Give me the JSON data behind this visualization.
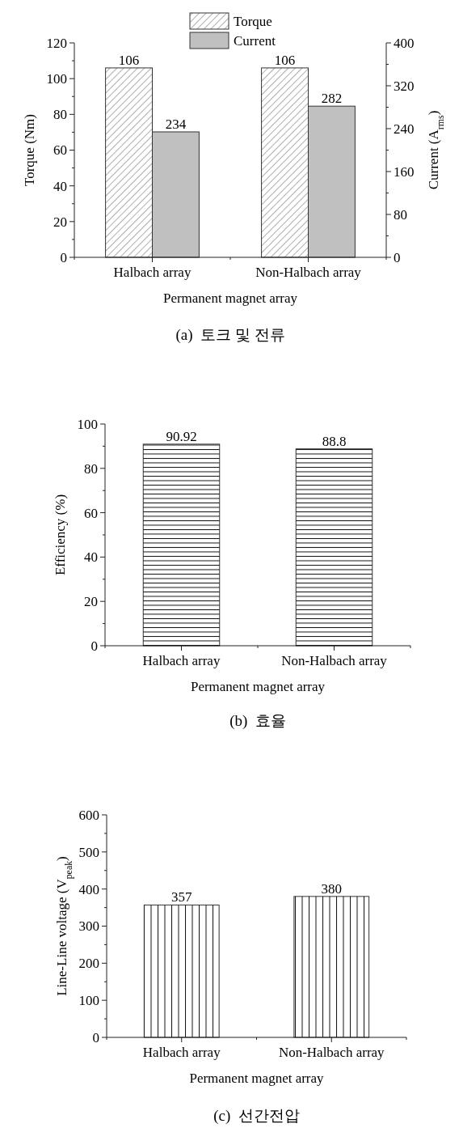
{
  "chart_data": [
    {
      "type": "bar",
      "categories": [
        "Halbach array",
        "Non-Halbach array"
      ],
      "xlabel": "Permanent magnet array",
      "ylabel": "Torque (Nm)",
      "y2label": "Current (A$_{rms}$)",
      "series": [
        {
          "name": "Torque",
          "color": "#ffffff",
          "values": [
            106,
            106
          ]
        },
        {
          "name": "Current",
          "color": "#c0c0c0",
          "values": [
            234,
            282
          ],
          "axis": "y2"
        }
      ],
      "ylim": [
        0,
        120
      ],
      "yticks": [
        0,
        20,
        40,
        60,
        80,
        100,
        120
      ],
      "y2lim": [
        0,
        400
      ],
      "y2ticks": [
        0,
        80,
        160,
        240,
        320,
        400
      ],
      "data_labels": true,
      "legend": "top",
      "annotations": [
        "(a)  토크 및 전류"
      ]
    },
    {
      "type": "bar",
      "categories": [
        "Halbach array",
        "Non-Halbach array"
      ],
      "xlabel": "Permanent magnet array",
      "ylabel": "Efficiency (%)",
      "series": [
        {
          "color": "#ffffff",
          "values": [
            90.92,
            88.8
          ]
        }
      ],
      "ylim": [
        0,
        100
      ],
      "yticks": [
        0,
        20,
        40,
        60,
        80,
        100
      ],
      "data_labels": true,
      "annotations": [
        "(b)  효율"
      ]
    },
    {
      "type": "bar",
      "categories": [
        "Halbach array",
        "Non-Halbach array"
      ],
      "xlabel": "Permanent magnet array",
      "ylabel": "Line-Line voltage (V$_{peak}$)",
      "series": [
        {
          "color": "#ffffff",
          "values": [
            357,
            380
          ]
        }
      ],
      "ylim": [
        0,
        600
      ],
      "yticks": [
        0,
        100,
        200,
        300,
        400,
        500,
        600
      ],
      "data_labels": true,
      "annotations": [
        "(c)  선간전압"
      ]
    }
  ]
}
